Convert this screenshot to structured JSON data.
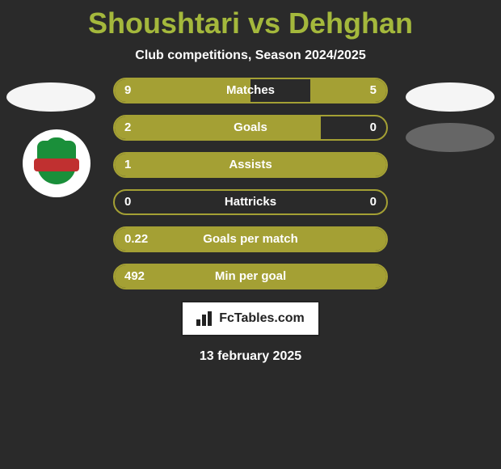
{
  "title": "Shoushtari vs Dehghan",
  "subtitle": "Club competitions, Season 2024/2025",
  "colors": {
    "background": "#2a2a2a",
    "accent": "#a4b83c",
    "bar_border": "#a4a034",
    "bar_fill": "#a4a034",
    "text": "#ffffff",
    "badge_bg": "#ffffff",
    "badge_text": "#222222",
    "slot_light": "#f5f5f5",
    "slot_dark": "#666666"
  },
  "bars": [
    {
      "label": "Matches",
      "left_val": "9",
      "right_val": "5",
      "left_pct": 50,
      "right_pct": 28
    },
    {
      "label": "Goals",
      "left_val": "2",
      "right_val": "0",
      "left_pct": 76,
      "right_pct": 0
    },
    {
      "label": "Assists",
      "left_val": "1",
      "right_val": "",
      "left_pct": 100,
      "right_pct": 0
    },
    {
      "label": "Hattricks",
      "left_val": "0",
      "right_val": "0",
      "left_pct": 0,
      "right_pct": 0
    },
    {
      "label": "Goals per match",
      "left_val": "0.22",
      "right_val": "",
      "left_pct": 100,
      "right_pct": 0
    },
    {
      "label": "Min per goal",
      "left_val": "492",
      "right_val": "",
      "left_pct": 100,
      "right_pct": 0
    }
  ],
  "footer_brand": "FcTables.com",
  "footer_date": "13 february 2025"
}
